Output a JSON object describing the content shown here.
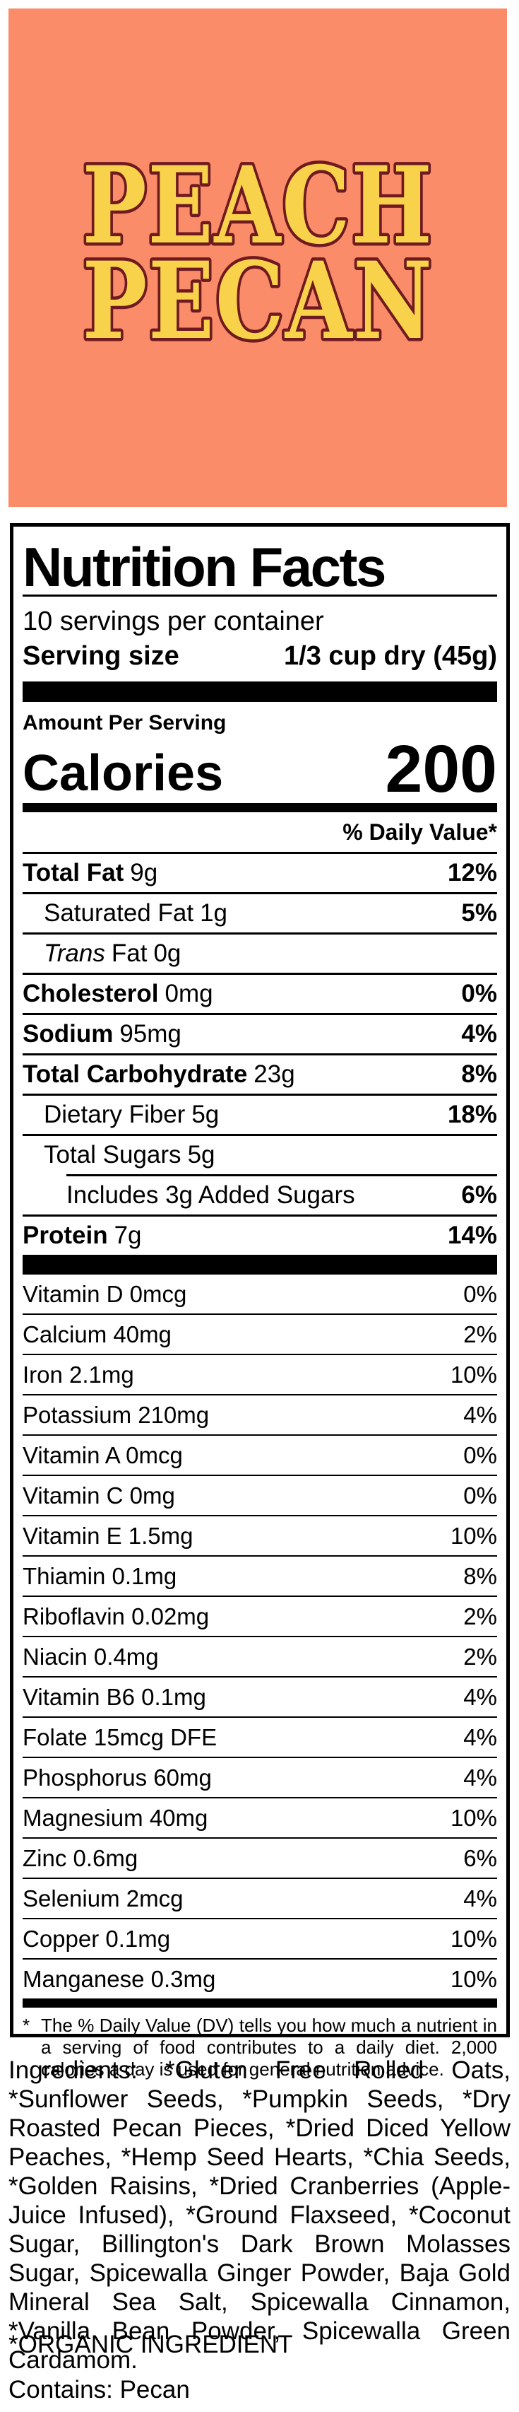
{
  "banner": {
    "line1": "PEACH",
    "line2": "PECAN",
    "bg_color": "#FA8C6A",
    "text_color": "#F9D24B",
    "outline_color": "#6E1A20"
  },
  "nutrition": {
    "title": "Nutrition Facts",
    "servings_per_container": "10 servings per container",
    "serving_size_label": "Serving size",
    "serving_size_value": "1/3 cup dry (45g)",
    "amount_per_serving": "Amount Per Serving",
    "calories_label": "Calories",
    "calories_value": "200",
    "daily_value_header": "% Daily Value*",
    "main_rows": [
      {
        "ital": "",
        "name": "Total Fat",
        "amount": "9g",
        "dv": "12%"
      },
      {
        "ital": "",
        "name": "Saturated Fat",
        "amount": "1g",
        "dv": "5%"
      },
      {
        "ital": "Trans",
        "name": "Fat",
        "amount": "0g",
        "dv": ""
      },
      {
        "ital": "",
        "name": "Cholesterol",
        "amount": "0mg",
        "dv": "0%"
      },
      {
        "ital": "",
        "name": "Sodium",
        "amount": "95mg",
        "dv": "4%"
      },
      {
        "ital": "",
        "name": "Total Carbohydrate",
        "amount": "23g",
        "dv": "8%"
      },
      {
        "ital": "",
        "name": "Dietary Fiber",
        "amount": "5g",
        "dv": "18%"
      },
      {
        "ital": "",
        "name": "Total Sugars",
        "amount": "5g",
        "dv": ""
      },
      {
        "ital": "",
        "name": "Includes 3g Added Sugars",
        "amount": "",
        "dv": "6%"
      },
      {
        "ital": "",
        "name": "Protein",
        "amount": "7g",
        "dv": "14%"
      }
    ],
    "micro_rows": [
      {
        "label": "Vitamin D 0mcg",
        "dv": "0%"
      },
      {
        "label": "Calcium 40mg",
        "dv": "2%"
      },
      {
        "label": "Iron 2.1mg",
        "dv": "10%"
      },
      {
        "label": "Potassium 210mg",
        "dv": "4%"
      },
      {
        "label": "Vitamin A 0mcg",
        "dv": "0%"
      },
      {
        "label": "Vitamin C 0mg",
        "dv": "0%"
      },
      {
        "label": "Vitamin E 1.5mg",
        "dv": "10%"
      },
      {
        "label": "Thiamin 0.1mg",
        "dv": "8%"
      },
      {
        "label": "Riboflavin 0.02mg",
        "dv": "2%"
      },
      {
        "label": "Niacin 0.4mg",
        "dv": "2%"
      },
      {
        "label": "Vitamin B6 0.1mg",
        "dv": "4%"
      },
      {
        "label": "Folate 15mcg DFE",
        "dv": "4%"
      },
      {
        "label": "Phosphorus 60mg",
        "dv": "4%"
      },
      {
        "label": "Magnesium 40mg",
        "dv": "10%"
      },
      {
        "label": "Zinc 0.6mg",
        "dv": "6%"
      },
      {
        "label": "Selenium 2mcg",
        "dv": "4%"
      },
      {
        "label": "Copper 0.1mg",
        "dv": "10%"
      },
      {
        "label": "Manganese 0.3mg",
        "dv": "10%"
      }
    ],
    "footnote_marker": "*",
    "footnote": "The % Daily Value (DV) tells you how much a nutrient in a serving of food contributes to a daily diet. 2,000 calories a day is used for general nutrition advice."
  },
  "ingredients_text": "Ingredients: *Gluten Free Rolled Oats, *Sunflower Seeds, *Pumpkin Seeds, *Dry Roasted Pecan Pieces, *Dried Diced Yellow Peaches, *Hemp Seed Hearts, *Chia Seeds, *Golden Raisins, *Dried Cranberries (Apple-Juice Infused), *Ground Flaxseed, *Coconut Sugar, Billington's Dark Brown Molasses Sugar, Spicewalla Ginger Powder, Baja Gold Mineral Sea Salt, Spicewalla Cinnamon, *Vanilla Bean Powder, Spicewalla Green Cardamom.",
  "organic_note": "*ORGANIC INGREDIENT",
  "contains_text": "Contains: Pecan"
}
